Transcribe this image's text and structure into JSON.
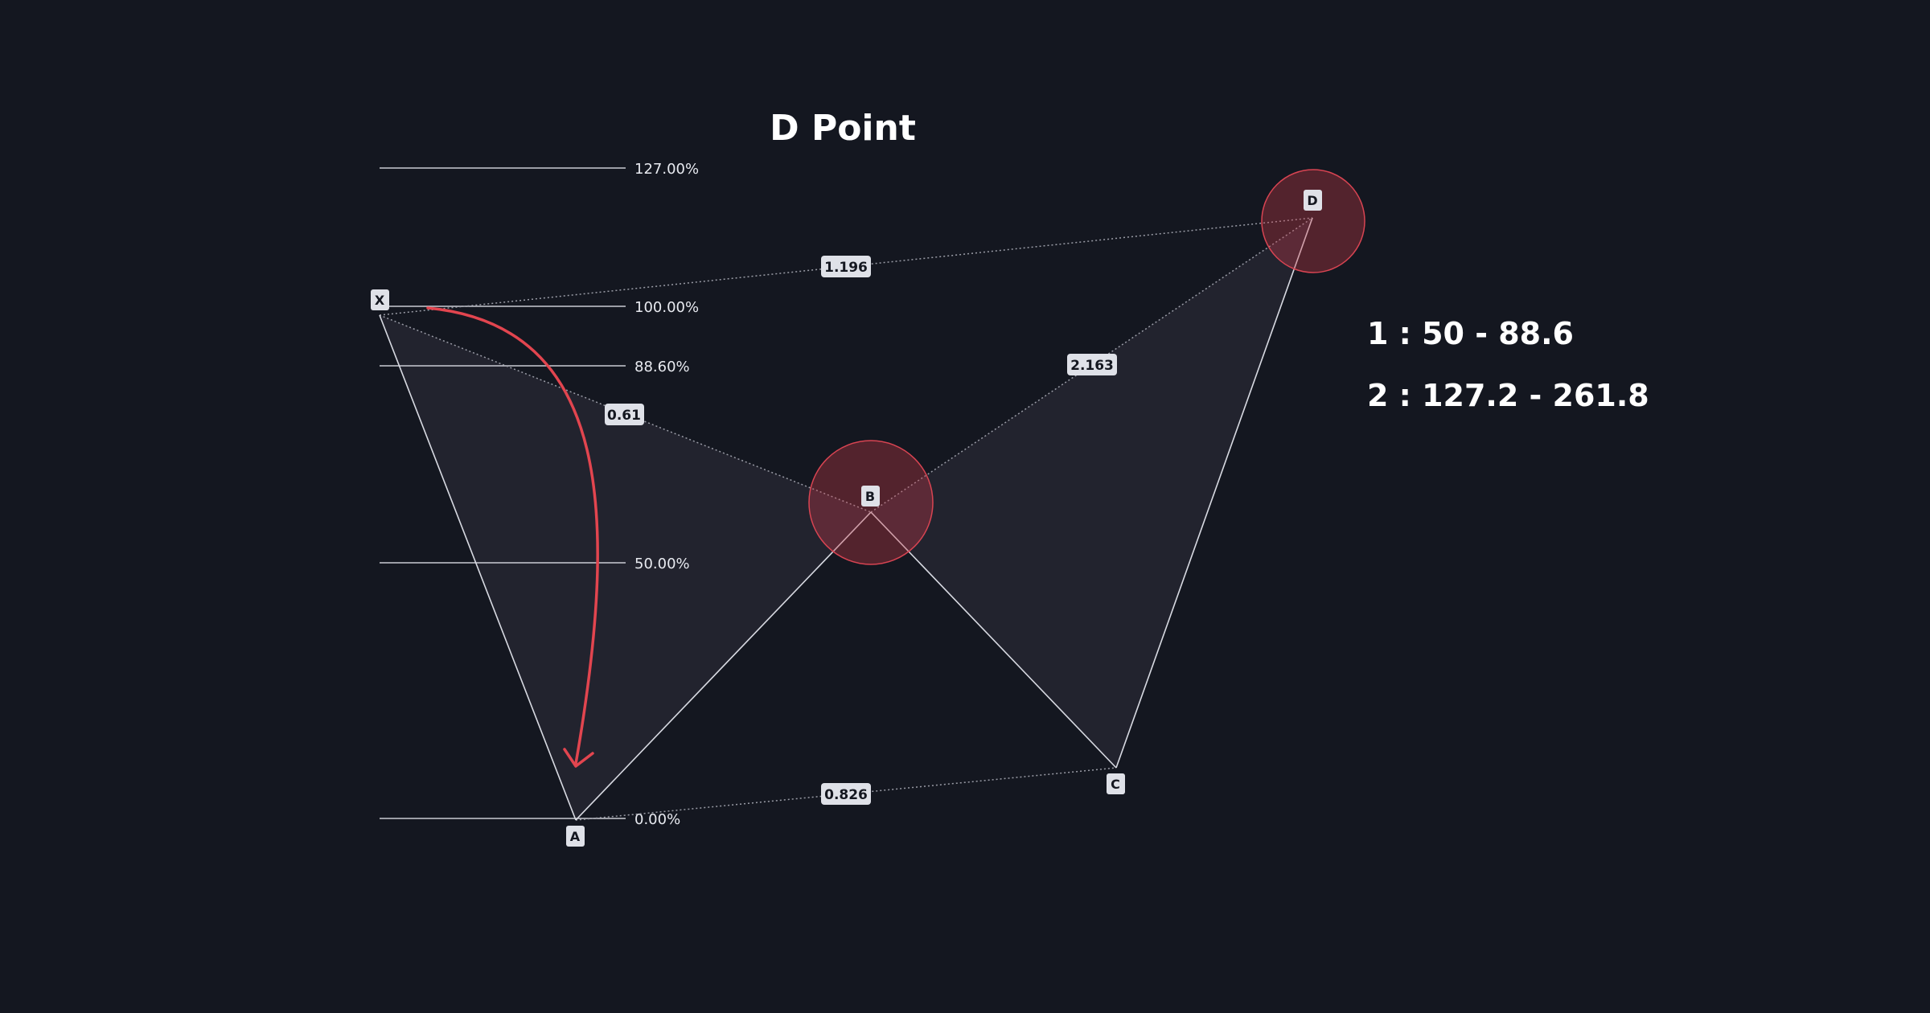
{
  "title": "D Point",
  "fib_levels": [
    {
      "id": "127",
      "label": "127.00%"
    },
    {
      "id": "100",
      "label": "100.00%"
    },
    {
      "id": "886",
      "label": "88.60%"
    },
    {
      "id": "50",
      "label": "50.00%"
    },
    {
      "id": "0",
      "label": "0.00%"
    }
  ],
  "points": {
    "x": "X",
    "a": "A",
    "b": "B",
    "c": "C",
    "d": "D"
  },
  "ratios": {
    "xb": "0.61",
    "xd": "1.196",
    "bd": "2.163",
    "ac": "0.826"
  },
  "ranges": {
    "line1": "1 : 50 - 88.6",
    "line2": "2 : 127.2 - 261.8"
  },
  "colors": {
    "background": "#141720",
    "line": "#d8dae2",
    "fill": "#23242f",
    "highlight": "#c83a48",
    "arrow": "#e2454f",
    "badge": "#dfe1e8"
  }
}
